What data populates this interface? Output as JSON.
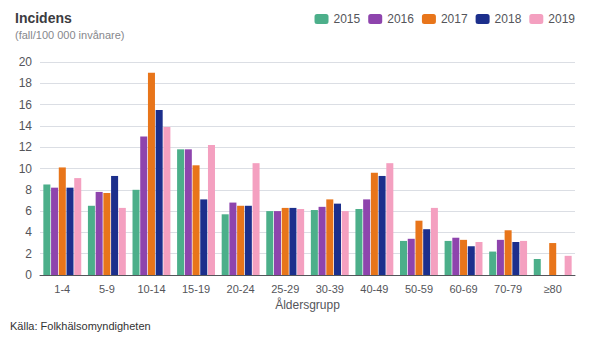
{
  "chart_data": {
    "type": "bar",
    "title": "Incidens",
    "subtitle": "(fall/100 000 invånare)",
    "xlabel": "Åldersgrupp",
    "annotation": "Källa: Folkhälsomyndigheten",
    "categories": [
      "1-4",
      "5-9",
      "10-14",
      "15-19",
      "20-24",
      "25-29",
      "30-39",
      "40-49",
      "50-59",
      "60-69",
      "70-79",
      "≥80"
    ],
    "series": [
      {
        "name": "2015",
        "color": "#4caf8a",
        "values": [
          8.5,
          6.5,
          8.0,
          11.8,
          5.7,
          6.0,
          6.1,
          6.2,
          3.2,
          3.2,
          2.2,
          1.5
        ]
      },
      {
        "name": "2016",
        "color": "#8e44ad",
        "values": [
          8.2,
          7.8,
          13.0,
          11.8,
          6.8,
          6.0,
          6.4,
          7.1,
          3.4,
          3.5,
          3.3,
          0.0
        ]
      },
      {
        "name": "2017",
        "color": "#e8751a",
        "values": [
          10.1,
          7.7,
          19.0,
          10.3,
          6.5,
          6.3,
          7.1,
          9.6,
          5.1,
          3.3,
          4.2,
          3.0
        ]
      },
      {
        "name": "2018",
        "color": "#1c2f8c",
        "values": [
          8.2,
          9.3,
          15.5,
          7.1,
          6.5,
          6.3,
          6.7,
          9.3,
          4.3,
          2.7,
          3.1,
          0.0
        ]
      },
      {
        "name": "2019",
        "color": "#f4a0c0",
        "values": [
          9.1,
          6.3,
          13.9,
          12.2,
          10.5,
          6.2,
          6.0,
          10.5,
          6.3,
          3.1,
          3.2,
          1.8
        ]
      }
    ],
    "ylim": [
      0,
      20
    ],
    "yticks": [
      0,
      2,
      4,
      6,
      8,
      10,
      12,
      14,
      16,
      18,
      20
    ],
    "grid": true,
    "legend": "top"
  }
}
